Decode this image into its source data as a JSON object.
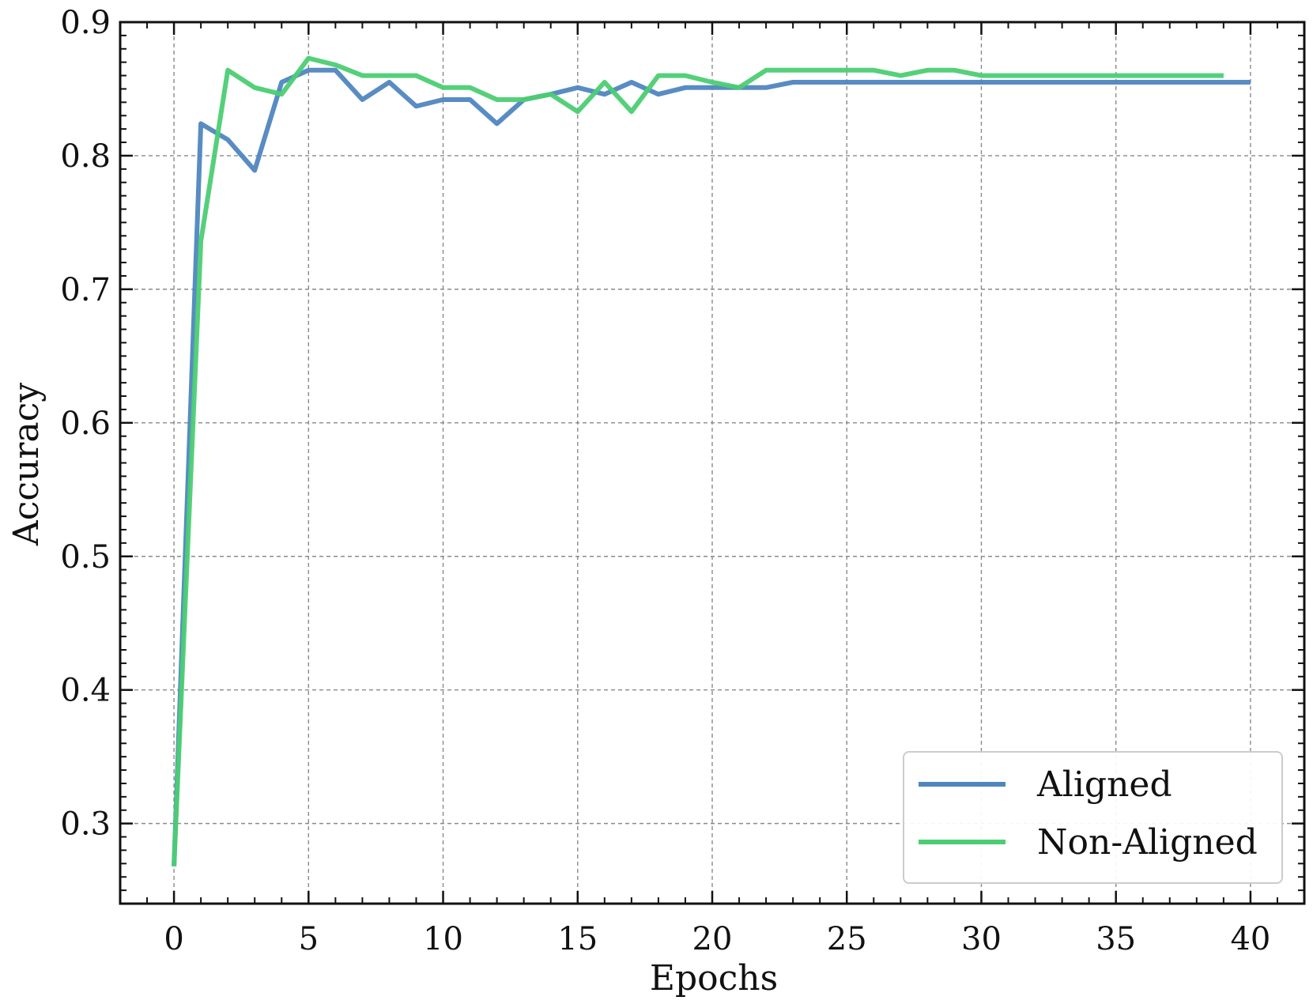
{
  "chart_data": {
    "type": "line",
    "title": "",
    "xlabel": "Epochs",
    "ylabel": "Accuracy",
    "xlim": [
      -2,
      42
    ],
    "ylim": [
      0.24,
      0.9
    ],
    "xticks": [
      0,
      5,
      10,
      15,
      20,
      25,
      30,
      35,
      40
    ],
    "yticks": [
      0.3,
      0.4,
      0.5,
      0.6,
      0.7,
      0.8,
      0.9
    ],
    "x_tick_labels": [
      "0",
      "5",
      "10",
      "15",
      "20",
      "25",
      "30",
      "35",
      "40"
    ],
    "y_tick_labels": [
      "0.3",
      "0.4",
      "0.5",
      "0.6",
      "0.7",
      "0.8",
      "0.9"
    ],
    "grid": true,
    "legend_position": "bottom-right",
    "series": [
      {
        "name": "Aligned",
        "color": "#4f86c0",
        "x": [
          0,
          1,
          2,
          3,
          4,
          5,
          6,
          7,
          8,
          9,
          10,
          11,
          12,
          13,
          14,
          15,
          16,
          17,
          18,
          19,
          20,
          21,
          22,
          23,
          24,
          25,
          26,
          27,
          28,
          29,
          30,
          31,
          32,
          33,
          34,
          35,
          36,
          37,
          38,
          39,
          40
        ],
        "values": [
          0.268,
          0.824,
          0.812,
          0.789,
          0.855,
          0.864,
          0.864,
          0.842,
          0.855,
          0.837,
          0.842,
          0.842,
          0.824,
          0.842,
          0.846,
          0.851,
          0.846,
          0.855,
          0.846,
          0.851,
          0.851,
          0.851,
          0.851,
          0.855,
          0.855,
          0.855,
          0.855,
          0.855,
          0.855,
          0.855,
          0.855,
          0.855,
          0.855,
          0.855,
          0.855,
          0.855,
          0.855,
          0.855,
          0.855,
          0.855,
          0.855
        ]
      },
      {
        "name": "Non-Aligned",
        "color": "#4ccd73",
        "x": [
          0,
          1,
          2,
          3,
          4,
          5,
          6,
          7,
          8,
          9,
          10,
          11,
          12,
          13,
          14,
          15,
          16,
          17,
          18,
          19,
          20,
          21,
          22,
          23,
          24,
          25,
          26,
          27,
          28,
          29,
          30,
          31,
          32,
          33,
          34,
          35,
          36,
          37,
          38,
          39
        ],
        "values": [
          0.268,
          0.736,
          0.864,
          0.851,
          0.846,
          0.873,
          0.868,
          0.86,
          0.86,
          0.86,
          0.851,
          0.851,
          0.842,
          0.842,
          0.846,
          0.833,
          0.855,
          0.833,
          0.86,
          0.86,
          0.855,
          0.851,
          0.864,
          0.864,
          0.864,
          0.864,
          0.864,
          0.86,
          0.864,
          0.864,
          0.86,
          0.86,
          0.86,
          0.86,
          0.86,
          0.86,
          0.86,
          0.86,
          0.86,
          0.86
        ]
      }
    ]
  }
}
